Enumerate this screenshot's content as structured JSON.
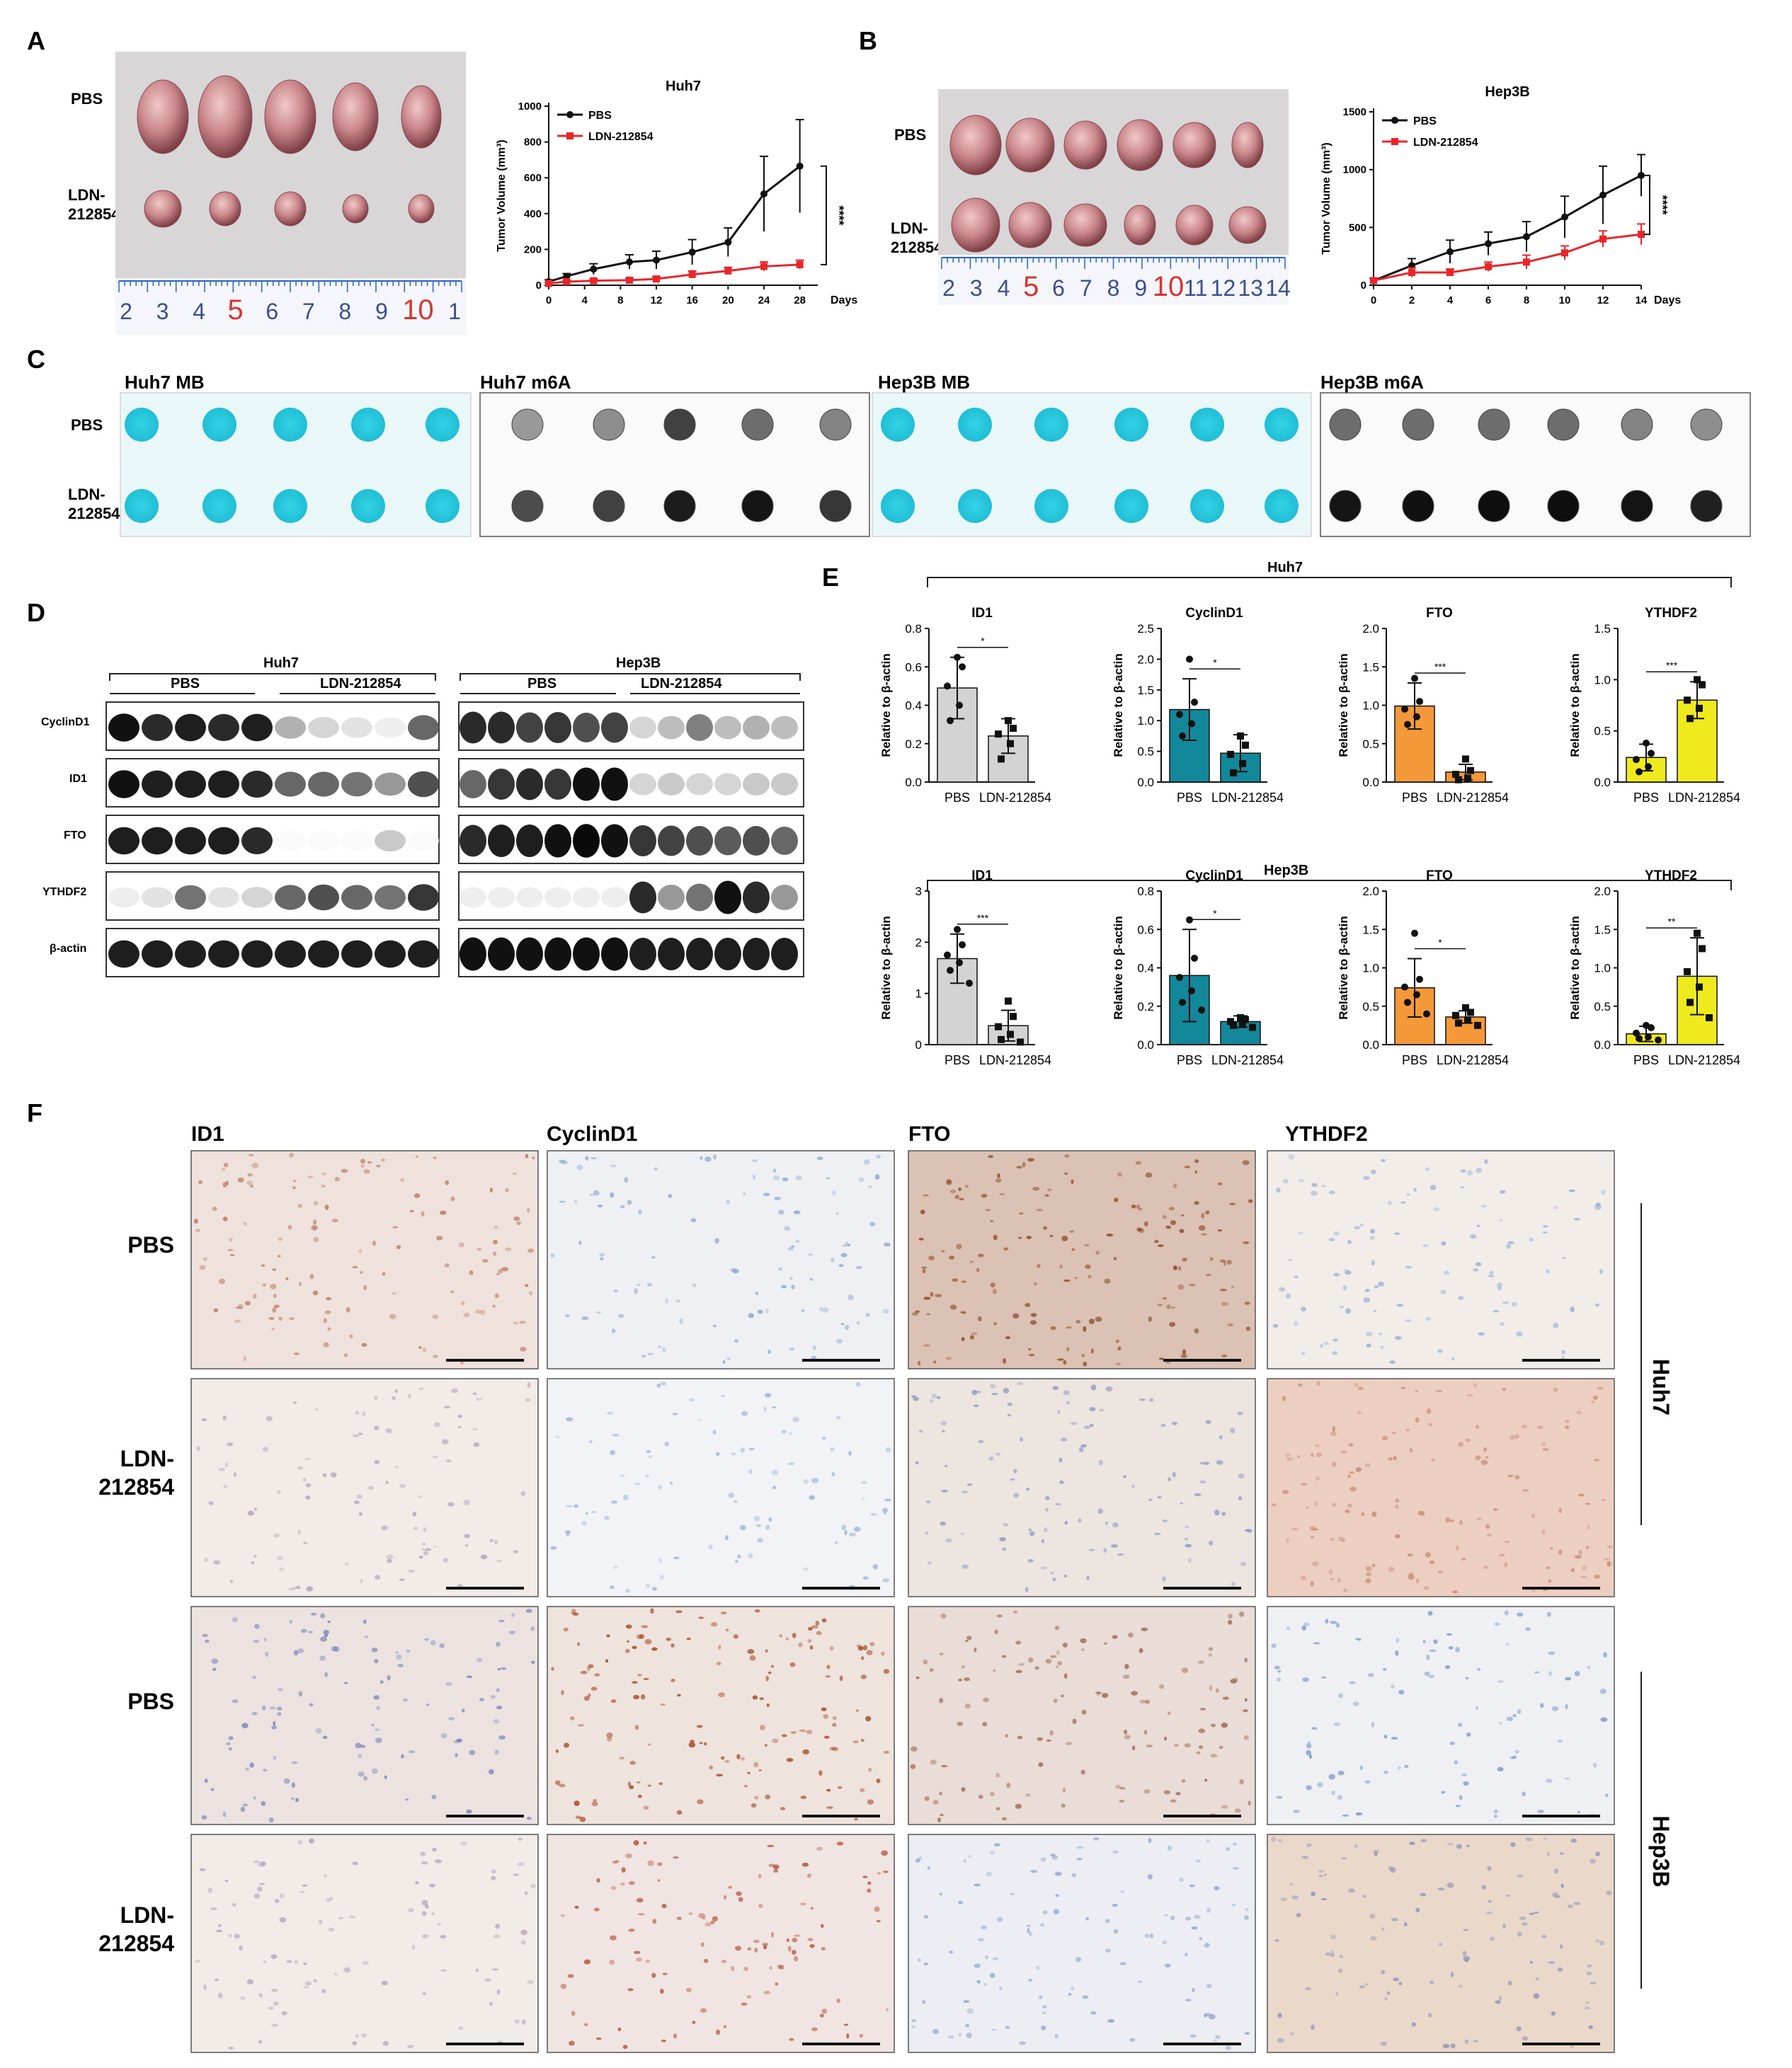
{
  "panels": {
    "A": "A",
    "B": "B",
    "C": "C",
    "D": "D",
    "E": "E",
    "F": "F"
  },
  "panelA": {
    "row_labels": [
      "PBS",
      "LDN-",
      "212854"
    ],
    "ruler_numbers": [
      "2",
      "3",
      "4",
      "5",
      "6",
      "7",
      "8",
      "9",
      "10",
      "1"
    ]
  },
  "panelB": {
    "row_labels": [
      "PBS",
      "LDN-",
      "212854"
    ],
    "ruler_numbers": [
      "2",
      "3",
      "4",
      "5",
      "6",
      "7",
      "8",
      "9",
      "10",
      "11",
      "12",
      "13",
      "14"
    ]
  },
  "colors": {
    "pbs": "#111111",
    "ldn": "#e8262b",
    "gray": "#d3d3d3",
    "teal": "#13889a",
    "orange": "#f4993a",
    "yellow": "#eeea1e",
    "mb_blue": "#27c6d8",
    "tumor": "#c9868b"
  },
  "chart_data": [
    {
      "id": "A-growth",
      "type": "line",
      "title": "Huh7",
      "xlabel": "Days",
      "ylabel": "Tumor Volume (mm³)",
      "xlim": [
        0,
        30
      ],
      "ylim": [
        0,
        1000
      ],
      "xticks": [
        0,
        4,
        8,
        12,
        16,
        20,
        24,
        28
      ],
      "yticks": [
        0,
        200,
        400,
        600,
        800,
        1000
      ],
      "x": [
        0,
        2,
        5,
        9,
        12,
        16,
        20,
        24,
        28
      ],
      "series": [
        {
          "name": "PBS",
          "values": [
            20,
            50,
            90,
            130,
            140,
            185,
            240,
            510,
            665
          ],
          "err": [
            10,
            15,
            30,
            40,
            50,
            70,
            80,
            210,
            260
          ]
        },
        {
          "name": "LDN-212854",
          "values": [
            10,
            20,
            25,
            28,
            35,
            60,
            80,
            105,
            115
          ],
          "err": [
            5,
            8,
            10,
            10,
            12,
            20,
            20,
            25,
            25
          ]
        }
      ],
      "significance": "****"
    },
    {
      "id": "B-growth",
      "type": "line",
      "title": "Hep3B",
      "xlabel": "Days",
      "ylabel": "Tumor Volume (mm³)",
      "xlim": [
        0,
        14
      ],
      "ylim": [
        0,
        1500
      ],
      "xticks": [
        0,
        2,
        4,
        6,
        8,
        10,
        12,
        14
      ],
      "yticks": [
        0,
        500,
        1000,
        1500
      ],
      "x": [
        0,
        2,
        4,
        6,
        8,
        10,
        12,
        14
      ],
      "series": [
        {
          "name": "PBS",
          "values": [
            40,
            170,
            290,
            360,
            420,
            590,
            780,
            950
          ],
          "err": [
            20,
            60,
            100,
            100,
            130,
            180,
            250,
            180
          ]
        },
        {
          "name": "LDN-212854",
          "values": [
            40,
            110,
            110,
            160,
            200,
            280,
            400,
            440
          ],
          "err": [
            20,
            40,
            30,
            40,
            60,
            60,
            70,
            90
          ]
        }
      ],
      "significance": "****"
    },
    {
      "id": "E-huh7-ID1",
      "type": "bar",
      "group": "Huh7",
      "title": "ID1",
      "ylabel": "Relative to β-actin",
      "categories": [
        "PBS",
        "LDN-212854"
      ],
      "values": [
        0.49,
        0.24
      ],
      "err": [
        0.16,
        0.09
      ],
      "ylim": [
        0,
        0.8
      ],
      "yticks": [
        "0.0",
        "0.2",
        "0.4",
        "0.6",
        "0.8"
      ],
      "points": [
        [
          0.65,
          0.6,
          0.5,
          0.4,
          0.32
        ],
        [
          0.32,
          0.28,
          0.25,
          0.2,
          0.12
        ]
      ],
      "color": "#d3d3d3",
      "significance": "*"
    },
    {
      "id": "E-huh7-CyclinD1",
      "type": "bar",
      "group": "Huh7",
      "title": "CyclinD1",
      "ylabel": "Relative to β-actin",
      "categories": [
        "PBS",
        "LDN-212854"
      ],
      "values": [
        1.18,
        0.47
      ],
      "err": [
        0.5,
        0.3
      ],
      "ylim": [
        0,
        2.5
      ],
      "yticks": [
        "0.0",
        "0.5",
        "1.0",
        "1.5",
        "2.0",
        "2.5"
      ],
      "points": [
        [
          2.0,
          1.3,
          1.1,
          0.95,
          0.75
        ],
        [
          0.75,
          0.6,
          0.45,
          0.3,
          0.15
        ]
      ],
      "color": "#13889a",
      "significance": "*"
    },
    {
      "id": "E-huh7-FTO",
      "type": "bar",
      "group": "Huh7",
      "title": "FTO",
      "ylabel": "Relative to β-actin",
      "categories": [
        "PBS",
        "LDN-212854"
      ],
      "values": [
        0.99,
        0.13
      ],
      "err": [
        0.3,
        0.1
      ],
      "ylim": [
        0,
        2.0
      ],
      "yticks": [
        "0.0",
        "0.5",
        "1.0",
        "1.5",
        "2.0"
      ],
      "points": [
        [
          1.35,
          1.05,
          0.95,
          0.85,
          0.75
        ],
        [
          0.3,
          0.15,
          0.1,
          0.05,
          0.03
        ]
      ],
      "color": "#f4993a",
      "significance": "***"
    },
    {
      "id": "E-huh7-YTHDF2",
      "type": "bar",
      "group": "Huh7",
      "title": "YTHDF2",
      "ylabel": "Relative to β-actin",
      "categories": [
        "PBS",
        "LDN-212854"
      ],
      "values": [
        0.24,
        0.8
      ],
      "err": [
        0.13,
        0.18
      ],
      "ylim": [
        0,
        1.5
      ],
      "yticks": [
        "0.0",
        "0.5",
        "1.0",
        "1.5"
      ],
      "points": [
        [
          0.38,
          0.28,
          0.22,
          0.15,
          0.1
        ],
        [
          1.0,
          0.95,
          0.8,
          0.72,
          0.62
        ]
      ],
      "color": "#eeea1e",
      "significance": "***"
    },
    {
      "id": "E-hep3b-ID1",
      "type": "bar",
      "group": "Hep3B",
      "title": "ID1",
      "ylabel": "Relative to β-actin",
      "categories": [
        "PBS",
        "LDN-212854"
      ],
      "values": [
        1.68,
        0.37
      ],
      "err": [
        0.48,
        0.3
      ],
      "ylim": [
        0,
        3
      ],
      "yticks": [
        "0",
        "1",
        "2",
        "3"
      ],
      "points": [
        [
          2.25,
          1.95,
          1.75,
          1.6,
          1.45,
          1.2
        ],
        [
          0.85,
          0.55,
          0.35,
          0.2,
          0.1,
          0.05
        ]
      ],
      "color": "#d3d3d3",
      "significance": "***"
    },
    {
      "id": "E-hep3b-CyclinD1",
      "type": "bar",
      "group": "Hep3B",
      "title": "CyclinD1",
      "ylabel": "Relative to β-actin",
      "categories": [
        "PBS",
        "LDN-212854"
      ],
      "values": [
        0.36,
        0.12
      ],
      "err": [
        0.24,
        0.03
      ],
      "ylim": [
        0,
        0.8
      ],
      "yticks": [
        "0.0",
        "0.2",
        "0.4",
        "0.6",
        "0.8"
      ],
      "points": [
        [
          0.65,
          0.45,
          0.35,
          0.28,
          0.22,
          0.18
        ],
        [
          0.14,
          0.13,
          0.12,
          0.11,
          0.1,
          0.09
        ]
      ],
      "color": "#13889a",
      "significance": "*"
    },
    {
      "id": "E-hep3b-FTO",
      "type": "bar",
      "group": "Hep3B",
      "title": "FTO",
      "ylabel": "Relative to β-actin",
      "categories": [
        "PBS",
        "LDN-212854"
      ],
      "values": [
        0.74,
        0.36
      ],
      "err": [
        0.38,
        0.08
      ],
      "ylim": [
        0,
        2.0
      ],
      "yticks": [
        "0.0",
        "0.5",
        "1.0",
        "1.5",
        "2.0"
      ],
      "points": [
        [
          1.45,
          0.85,
          0.75,
          0.65,
          0.55,
          0.4
        ],
        [
          0.48,
          0.42,
          0.38,
          0.32,
          0.28,
          0.25
        ]
      ],
      "color": "#f4993a",
      "significance": "*"
    },
    {
      "id": "E-hep3b-YTHDF2",
      "type": "bar",
      "group": "Hep3B",
      "title": "YTHDF2",
      "ylabel": "Relative to β-actin",
      "categories": [
        "PBS",
        "LDN-212854"
      ],
      "values": [
        0.14,
        0.89
      ],
      "err": [
        0.1,
        0.5
      ],
      "ylim": [
        0,
        2.0
      ],
      "yticks": [
        "0.0",
        "0.5",
        "1.0",
        "1.5",
        "2.0"
      ],
      "points": [
        [
          0.25,
          0.22,
          0.15,
          0.1,
          0.08,
          0.06
        ],
        [
          1.45,
          1.25,
          0.95,
          0.75,
          0.55,
          0.35
        ]
      ],
      "color": "#eeea1e",
      "significance": "**"
    }
  ],
  "panelC": {
    "titles": [
      "Huh7 MB",
      "Huh7 m6A",
      "Hep3B MB",
      "Hep3B m6A"
    ],
    "row_labels": [
      "PBS",
      "LDN-",
      "212854"
    ],
    "m6a_intensity": {
      "huh7_pbs": [
        0.35,
        0.4,
        0.75,
        0.55,
        0.45
      ],
      "huh7_ldn": [
        0.7,
        0.75,
        0.92,
        0.95,
        0.8
      ],
      "hep3b_pbs": [
        0.55,
        0.55,
        0.55,
        0.55,
        0.45,
        0.4
      ],
      "hep3b_ldn": [
        0.95,
        0.97,
        0.98,
        0.98,
        0.96,
        0.9
      ]
    }
  },
  "panelD": {
    "groups": [
      "Huh7",
      "Hep3B"
    ],
    "subgroups": [
      "PBS",
      "LDN-212854",
      "PBS",
      "LDN-212854"
    ],
    "rows": [
      "CyclinD1",
      "ID1",
      "FTO",
      "YTHDF2",
      "β-actin"
    ],
    "intensity": {
      "huh7": [
        [
          0.95,
          0.85,
          0.9,
          0.85,
          0.9,
          0.3,
          0.15,
          0.1,
          0.05,
          0.6
        ],
        [
          0.95,
          0.9,
          0.9,
          0.9,
          0.85,
          0.6,
          0.6,
          0.55,
          0.4,
          0.7
        ],
        [
          0.9,
          0.9,
          0.9,
          0.9,
          0.85,
          0.0,
          0.0,
          0.0,
          0.2,
          0.0
        ],
        [
          0.05,
          0.1,
          0.55,
          0.1,
          0.15,
          0.6,
          0.7,
          0.6,
          0.55,
          0.8
        ],
        [
          0.9,
          0.9,
          0.9,
          0.9,
          0.9,
          0.9,
          0.9,
          0.9,
          0.9,
          0.9
        ]
      ],
      "hep3b": [
        [
          0.85,
          0.85,
          0.75,
          0.8,
          0.7,
          0.75,
          0.15,
          0.25,
          0.5,
          0.25,
          0.3,
          0.25
        ],
        [
          0.6,
          0.8,
          0.85,
          0.8,
          0.95,
          0.95,
          0.15,
          0.2,
          0.15,
          0.15,
          0.2,
          0.2
        ],
        [
          0.85,
          0.9,
          0.9,
          0.95,
          0.98,
          0.95,
          0.8,
          0.75,
          0.7,
          0.65,
          0.7,
          0.6
        ],
        [
          0.05,
          0.05,
          0.05,
          0.05,
          0.05,
          0.05,
          0.85,
          0.4,
          0.55,
          0.95,
          0.85,
          0.4
        ],
        [
          0.95,
          0.95,
          0.95,
          0.95,
          0.95,
          0.95,
          0.9,
          0.9,
          0.9,
          0.9,
          0.9,
          0.9
        ]
      ]
    }
  },
  "panelE": {
    "group_labels": [
      "Huh7",
      "Hep3B"
    ]
  },
  "panelF": {
    "column_titles": [
      "ID1",
      "CyclinD1",
      "FTO",
      "YTHDF2"
    ],
    "row_labels": [
      [
        "PBS"
      ],
      [
        "LDN-",
        "212854"
      ],
      [
        "PBS"
      ],
      [
        "LDN-",
        "212854"
      ]
    ],
    "side_labels": [
      "Huh7",
      "Hep3B"
    ],
    "tiles": [
      [
        {
          "base": "#efe2dc",
          "dot": "#b87a62",
          "density": 0.55
        },
        {
          "base": "#eef0f3",
          "dot": "#8fa8cc",
          "density": 0.35
        },
        {
          "base": "#dcc2b4",
          "dot": "#8a4a2c",
          "density": 0.75
        },
        {
          "base": "#f2ede9",
          "dot": "#98acd0",
          "density": 0.35
        }
      ],
      [
        {
          "base": "#f2ebe7",
          "dot": "#b5a5b8",
          "density": 0.3
        },
        {
          "base": "#f1f3f6",
          "dot": "#9fb4d4",
          "density": 0.25
        },
        {
          "base": "#ece5e0",
          "dot": "#8f96be",
          "density": 0.4
        },
        {
          "base": "#edcfc2",
          "dot": "#c58a74",
          "density": 0.6
        }
      ],
      [
        {
          "base": "#ece3e1",
          "dot": "#7d84b4",
          "density": 0.45
        },
        {
          "base": "#efe3de",
          "dot": "#a04622",
          "density": 0.7
        },
        {
          "base": "#eadcd6",
          "dot": "#9c6b58",
          "density": 0.5
        },
        {
          "base": "#eef0f4",
          "dot": "#7f98c6",
          "density": 0.35
        }
      ],
      [
        {
          "base": "#f2ece9",
          "dot": "#b3a6b8",
          "density": 0.3
        },
        {
          "base": "#f0e5e3",
          "dot": "#b5553a",
          "density": 0.4
        },
        {
          "base": "#eceef3",
          "dot": "#8ea1c9",
          "density": 0.4
        },
        {
          "base": "#ead9cb",
          "dot": "#8d90b7",
          "density": 0.45
        }
      ]
    ]
  }
}
